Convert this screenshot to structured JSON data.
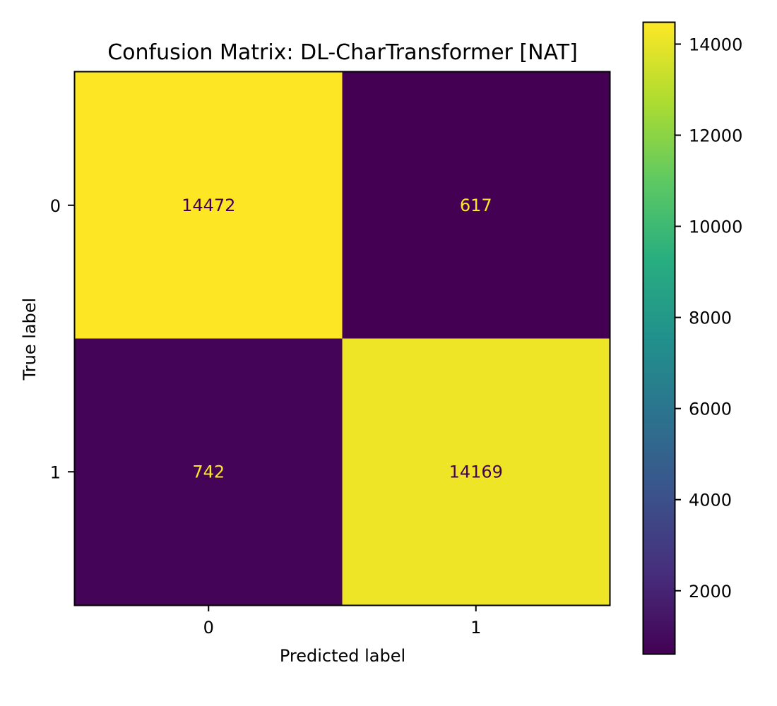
{
  "chart_data": {
    "type": "heatmap",
    "title": "Confusion Matrix: DL-CharTransformer [NAT]",
    "xlabel": "Predicted label",
    "ylabel": "True label",
    "x_categories": [
      "0",
      "1"
    ],
    "y_categories": [
      "0",
      "1"
    ],
    "values": [
      [
        14472,
        617
      ],
      [
        742,
        14169
      ]
    ],
    "colormap": "viridis",
    "colorbar": {
      "range": [
        617,
        14472
      ],
      "ticks": [
        2000,
        4000,
        6000,
        8000,
        10000,
        12000,
        14000
      ],
      "tick_labels": [
        "2000",
        "4000",
        "6000",
        "8000",
        "10000",
        "12000",
        "14000"
      ]
    },
    "grid": false
  }
}
